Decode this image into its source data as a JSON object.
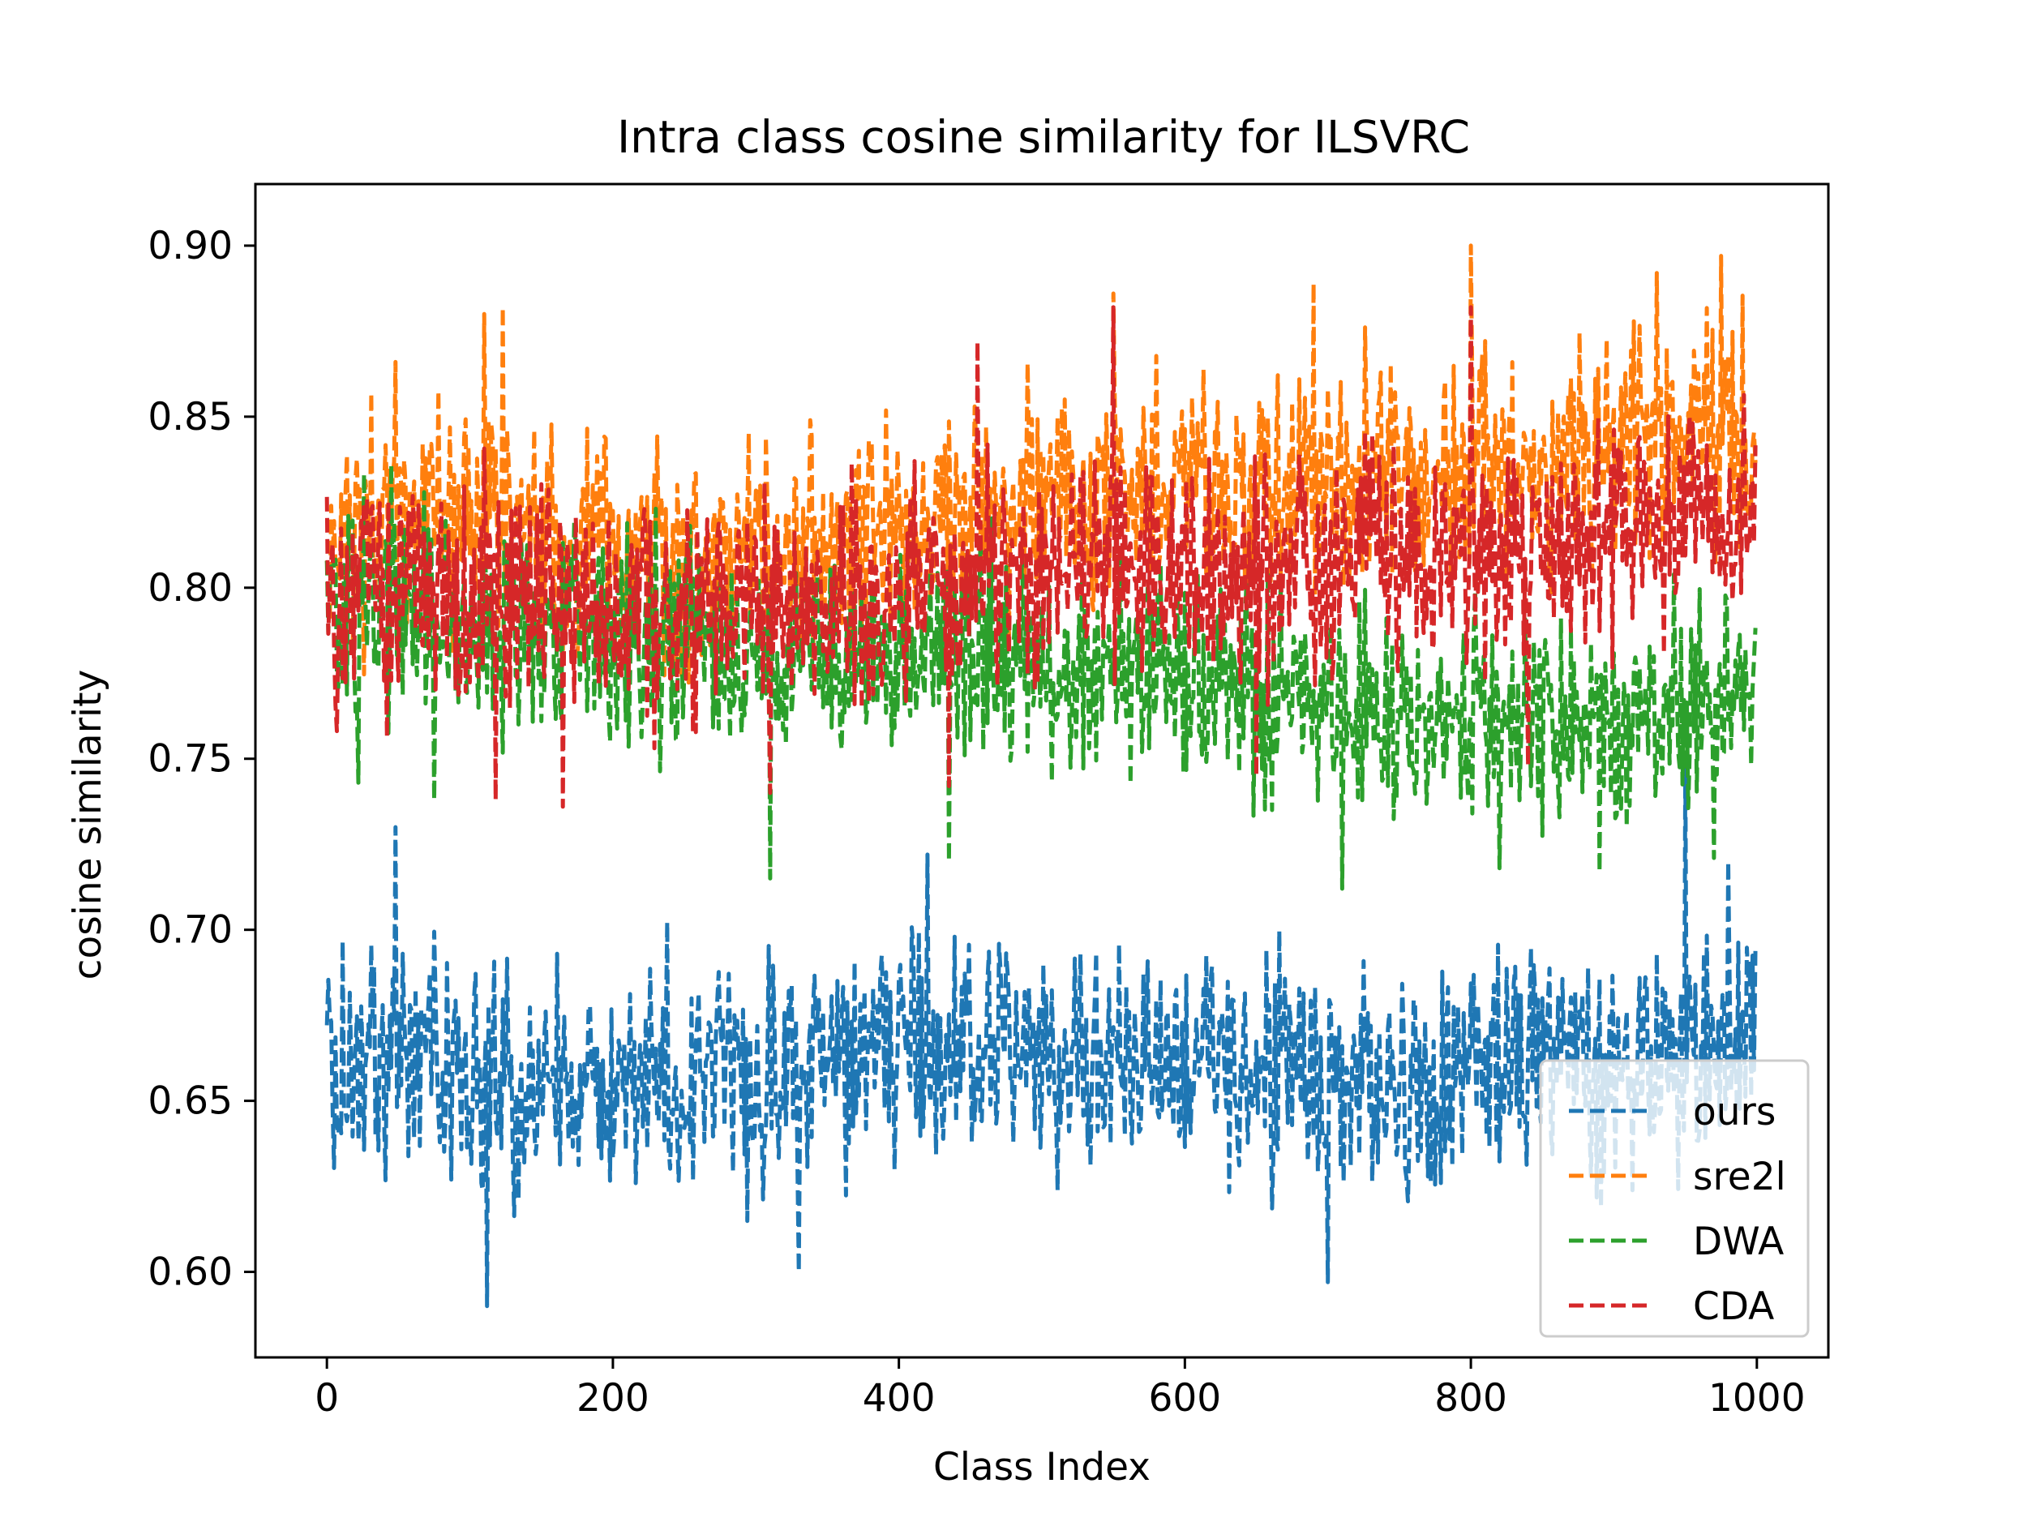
{
  "chart_data": {
    "type": "line",
    "title": "Intra class cosine similarity for ILSVRC",
    "xlabel": "Class Index",
    "ylabel": "cosine similarity",
    "xlim": [
      -50,
      1050
    ],
    "ylim": [
      0.575,
      0.918
    ],
    "xticks": [
      0,
      200,
      400,
      600,
      800,
      1000
    ],
    "xtick_labels": [
      "0",
      "200",
      "400",
      "600",
      "800",
      "1000"
    ],
    "yticks": [
      0.6,
      0.65,
      0.7,
      0.75,
      0.8,
      0.85,
      0.9
    ],
    "ytick_labels": [
      "0.60",
      "0.65",
      "0.70",
      "0.75",
      "0.80",
      "0.85",
      "0.90"
    ],
    "grid": false,
    "legend_position": "lower-right",
    "line_style": "dashed",
    "n_points": 1000,
    "series": [
      {
        "name": "ours",
        "color": "#1f77b4",
        "anchors_x": [
          0,
          50,
          100,
          150,
          200,
          250,
          300,
          350,
          400,
          450,
          500,
          550,
          600,
          650,
          700,
          750,
          800,
          850,
          900,
          950,
          999
        ],
        "anchors_y": [
          0.662,
          0.665,
          0.66,
          0.655,
          0.652,
          0.66,
          0.655,
          0.66,
          0.665,
          0.665,
          0.665,
          0.665,
          0.66,
          0.66,
          0.655,
          0.655,
          0.66,
          0.665,
          0.66,
          0.665,
          0.67
        ],
        "spread": 0.016,
        "spikes": [
          [
            48,
            0.73
          ],
          [
            112,
            0.59
          ],
          [
            330,
            0.6
          ],
          [
            420,
            0.722
          ],
          [
            950,
            0.748
          ],
          [
            980,
            0.72
          ],
          [
            700,
            0.597
          ]
        ]
      },
      {
        "name": "sre2l",
        "color": "#ff7f0e",
        "anchors_x": [
          0,
          50,
          100,
          150,
          200,
          250,
          300,
          350,
          400,
          450,
          500,
          550,
          600,
          650,
          700,
          750,
          800,
          850,
          900,
          950,
          999
        ],
        "anchors_y": [
          0.812,
          0.82,
          0.82,
          0.815,
          0.805,
          0.808,
          0.81,
          0.812,
          0.818,
          0.822,
          0.83,
          0.832,
          0.828,
          0.83,
          0.835,
          0.835,
          0.838,
          0.835,
          0.84,
          0.842,
          0.845
        ],
        "spread": 0.016,
        "spikes": [
          [
            800,
            0.9
          ],
          [
            975,
            0.897
          ],
          [
            930,
            0.892
          ],
          [
            550,
            0.886
          ],
          [
            690,
            0.889
          ],
          [
            123,
            0.882
          ],
          [
            110,
            0.88
          ],
          [
            48,
            0.866
          ]
        ]
      },
      {
        "name": "DWA",
        "color": "#2ca02c",
        "anchors_x": [
          0,
          50,
          100,
          150,
          200,
          250,
          300,
          350,
          400,
          450,
          500,
          550,
          600,
          650,
          700,
          750,
          800,
          850,
          900,
          950,
          999
        ],
        "anchors_y": [
          0.795,
          0.795,
          0.79,
          0.788,
          0.785,
          0.785,
          0.782,
          0.78,
          0.78,
          0.78,
          0.778,
          0.775,
          0.772,
          0.77,
          0.765,
          0.76,
          0.76,
          0.758,
          0.76,
          0.765,
          0.768
        ],
        "spread": 0.015,
        "spikes": [
          [
            310,
            0.715
          ],
          [
            435,
            0.72
          ],
          [
            710,
            0.712
          ],
          [
            820,
            0.718
          ],
          [
            890,
            0.717
          ],
          [
            970,
            0.721
          ],
          [
            75,
            0.738
          ],
          [
            22,
            0.743
          ],
          [
            45,
            0.836
          ]
        ]
      },
      {
        "name": "CDA",
        "color": "#d62728",
        "anchors_x": [
          0,
          50,
          100,
          150,
          200,
          250,
          300,
          350,
          400,
          450,
          500,
          550,
          600,
          650,
          700,
          750,
          800,
          850,
          900,
          950,
          999
        ],
        "anchors_y": [
          0.795,
          0.8,
          0.798,
          0.795,
          0.79,
          0.792,
          0.795,
          0.798,
          0.8,
          0.802,
          0.805,
          0.808,
          0.805,
          0.805,
          0.808,
          0.808,
          0.81,
          0.812,
          0.815,
          0.82,
          0.822
        ],
        "spread": 0.016,
        "spikes": [
          [
            800,
            0.882
          ],
          [
            550,
            0.882
          ],
          [
            455,
            0.872
          ],
          [
            165,
            0.736
          ],
          [
            118,
            0.738
          ],
          [
            310,
            0.74
          ],
          [
            435,
            0.742
          ],
          [
            840,
            0.748
          ],
          [
            650,
            0.745
          ]
        ]
      }
    ]
  }
}
